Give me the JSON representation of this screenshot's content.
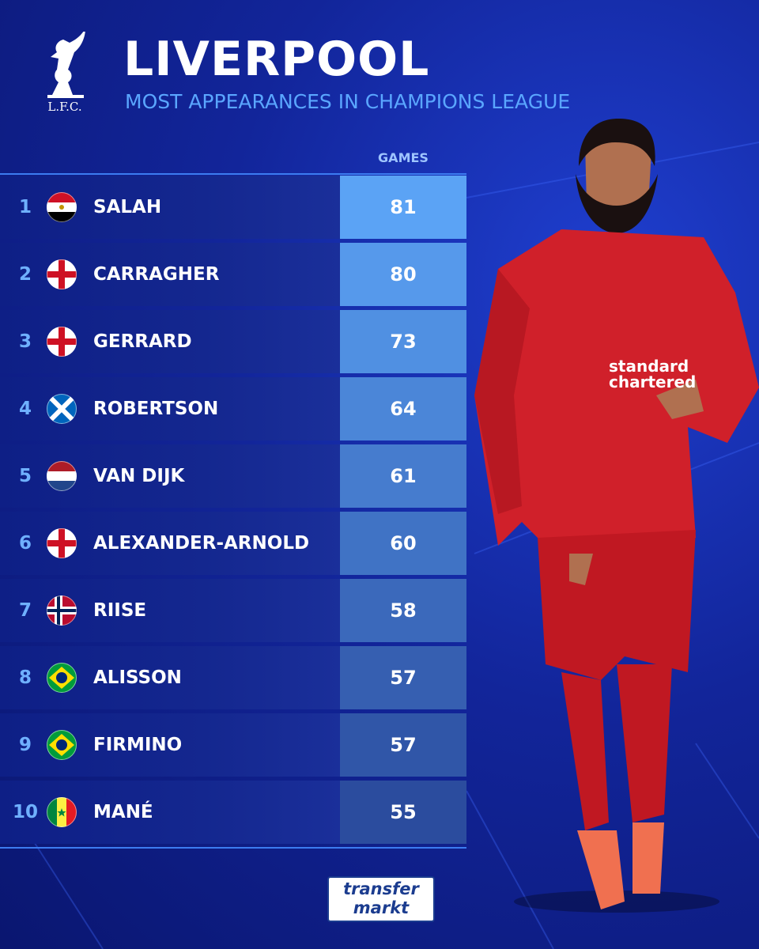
{
  "header": {
    "logo_text": "L.F.C.",
    "title": "LIVERPOOL",
    "subtitle": "MOST APPEARANCES IN CHAMPIONS LEAGUE"
  },
  "table": {
    "column_header": "GAMES",
    "rows": [
      {
        "rank": 1,
        "name": "SALAH",
        "games": 81
      },
      {
        "rank": 2,
        "name": "CARRAGHER",
        "games": 80
      },
      {
        "rank": 3,
        "name": "GERRARD",
        "games": 73
      },
      {
        "rank": 4,
        "name": "ROBERTSON",
        "games": 64
      },
      {
        "rank": 5,
        "name": "VAN DIJK",
        "games": 61
      },
      {
        "rank": 6,
        "name": "ALEXANDER-ARNOLD",
        "games": 60
      },
      {
        "rank": 7,
        "name": "RIISE",
        "games": 58
      },
      {
        "rank": 8,
        "name": "ALISSON",
        "games": 57
      },
      {
        "rank": 9,
        "name": "FIRMINO",
        "games": 57
      },
      {
        "rank": 10,
        "name": "MANÉ",
        "games": 55
      }
    ]
  },
  "footer": {
    "logo_top": "transfer",
    "logo_bottom": "markt"
  }
}
